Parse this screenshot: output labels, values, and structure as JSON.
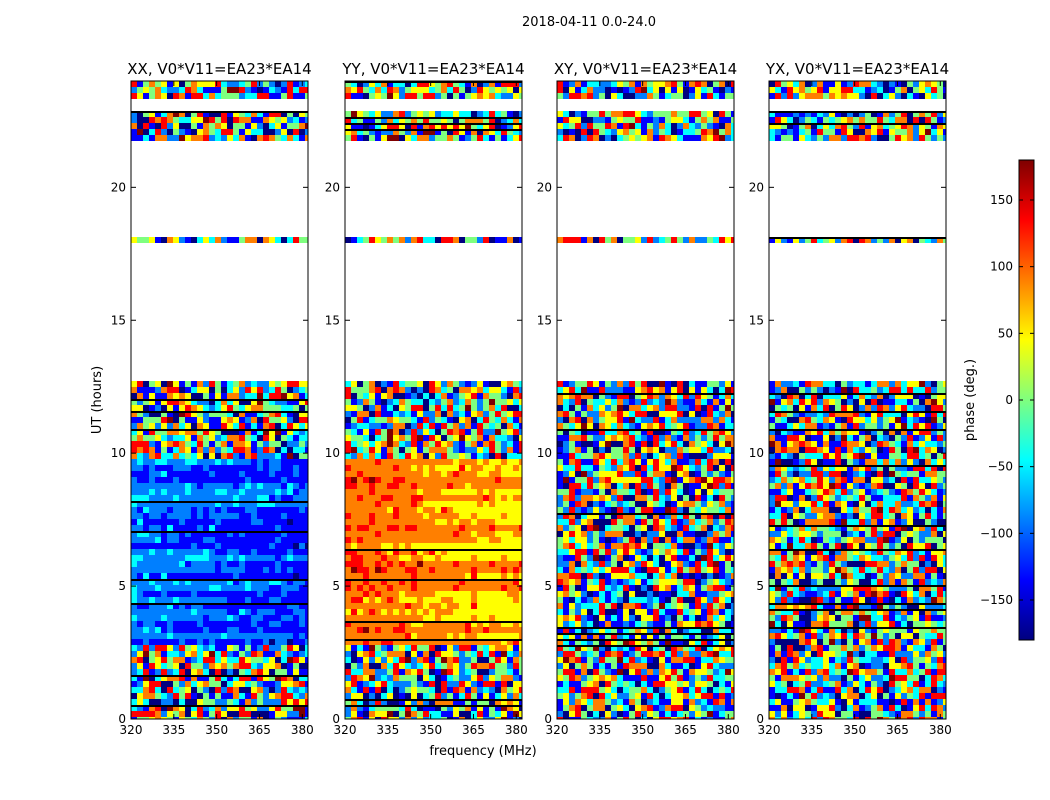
{
  "suptitle": "2018-04-11 0.0-24.0",
  "chart_data": {
    "type": "heatmap",
    "xlabel": "frequency (MHz)",
    "ylabel": "UT (hours)",
    "xlim": [
      320,
      382
    ],
    "ylim": [
      0,
      24
    ],
    "xticks": [
      320,
      335,
      350,
      365,
      380
    ],
    "yticks": [
      0,
      5,
      10,
      15,
      20
    ],
    "panels": [
      {
        "title": "XX, V0*V11=EA23*EA14",
        "mean_phase": -70,
        "coherent_hours": [
          [
            2.8,
            9.7
          ]
        ]
      },
      {
        "title": "YY, V0*V11=EA23*EA14",
        "mean_phase": 120,
        "coherent_hours": [
          [
            2.8,
            9.7
          ]
        ]
      },
      {
        "title": "XY, V0*V11=EA23*EA14",
        "mean_phase": null,
        "coherent_hours": []
      },
      {
        "title": "YX, V0*V11=EA23*EA14",
        "mean_phase": null,
        "coherent_hours": []
      }
    ],
    "blank_hours": [
      [
        12.8,
        17.8
      ],
      [
        18.1,
        21.8
      ],
      [
        22.8,
        23.3
      ]
    ],
    "colorbar": {
      "label": "phase (deg.)",
      "vmin": -180,
      "vmax": 180,
      "ticks": [
        150,
        100,
        50,
        0,
        -50,
        -100,
        -150
      ],
      "tick_labels": [
        "150",
        "100",
        "50",
        "0",
        "−50",
        "−100",
        "−150"
      ],
      "colormap": [
        "#00007f",
        "#0000ff",
        "#007fff",
        "#00ffff",
        "#7fff7f",
        "#ffff00",
        "#ff7f00",
        "#ff0000",
        "#7f0000"
      ]
    }
  }
}
